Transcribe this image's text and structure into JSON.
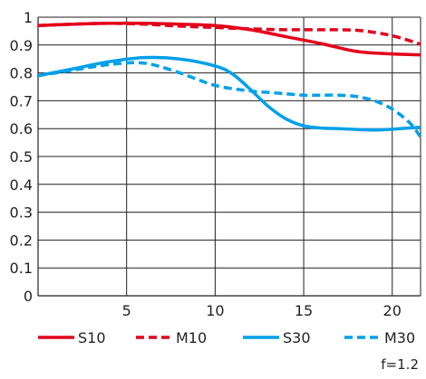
{
  "chart_data": {
    "type": "line",
    "title": "",
    "xlabel": "",
    "ylabel": "",
    "xlim": [
      0,
      21.6
    ],
    "ylim": [
      0,
      1
    ],
    "xticks": [
      "5",
      "10",
      "15",
      "20"
    ],
    "yticks": [
      "0",
      "0.1",
      "0.2",
      "0.3",
      "0.4",
      "0.5",
      "0.6",
      "0.7",
      "0.8",
      "0.9",
      "1"
    ],
    "grid": true,
    "legend_position": "bottom",
    "series": [
      {
        "name": "S10",
        "color": "#e3001b",
        "dash": "solid",
        "x": [
          0,
          2,
          4,
          6,
          8,
          10,
          12,
          14,
          16,
          18,
          20,
          21.6
        ],
        "y": [
          0.97,
          0.975,
          0.978,
          0.978,
          0.975,
          0.97,
          0.955,
          0.93,
          0.905,
          0.877,
          0.868,
          0.865
        ]
      },
      {
        "name": "M10",
        "color": "#e3001b",
        "dash": "dashed",
        "x": [
          0,
          2,
          4,
          6,
          8,
          10,
          12,
          14,
          16,
          18,
          19.5,
          20.5,
          21.6
        ],
        "y": [
          0.97,
          0.975,
          0.978,
          0.975,
          0.968,
          0.963,
          0.958,
          0.955,
          0.955,
          0.953,
          0.94,
          0.925,
          0.903
        ]
      },
      {
        "name": "S30",
        "color": "#00a0e9",
        "dash": "solid",
        "x": [
          0,
          2,
          4,
          6,
          8,
          10,
          11,
          12,
          13,
          14,
          15,
          16,
          17,
          18,
          19,
          20,
          21.6
        ],
        "y": [
          0.79,
          0.815,
          0.84,
          0.855,
          0.85,
          0.825,
          0.795,
          0.74,
          0.68,
          0.635,
          0.61,
          0.602,
          0.6,
          0.597,
          0.595,
          0.598,
          0.605
        ]
      },
      {
        "name": "M30",
        "color": "#00a0e9",
        "dash": "dashed",
        "x": [
          0,
          2,
          4,
          6,
          8,
          10,
          12,
          13,
          14,
          15,
          16,
          17,
          18,
          19,
          20,
          21,
          21.6
        ],
        "y": [
          0.79,
          0.81,
          0.83,
          0.835,
          0.8,
          0.755,
          0.735,
          0.73,
          0.725,
          0.72,
          0.72,
          0.72,
          0.715,
          0.7,
          0.67,
          0.62,
          0.57
        ]
      }
    ],
    "annotation": "f=1.2"
  }
}
